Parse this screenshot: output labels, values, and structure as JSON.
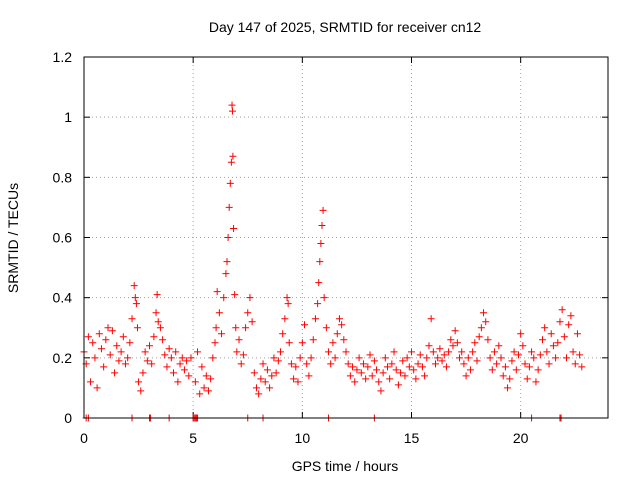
{
  "chart_data": {
    "type": "scatter",
    "title": "Day 147 of 2025, SRMTID for receiver cn12",
    "xlabel": "GPS time / hours",
    "ylabel": "SRMTID / TECUs",
    "xlim": [
      0,
      24
    ],
    "ylim": [
      0,
      1.2
    ],
    "x_ticks": [
      0,
      5,
      10,
      15,
      20
    ],
    "y_ticks": [
      0,
      0.2,
      0.4,
      0.6,
      0.8,
      1,
      1.2
    ],
    "x_tick_labels": [
      "0",
      "5",
      "10",
      "15",
      "20"
    ],
    "y_tick_labels": [
      "0",
      "0.2",
      "0.4",
      "0.6",
      "0.8",
      "1",
      "1.2"
    ],
    "grid": true,
    "marker": "+",
    "series_color": "#ff0000",
    "series": [
      {
        "name": "cn12",
        "points": [
          [
            0.0,
            0.22
          ],
          [
            0.1,
            0.18
          ],
          [
            0.2,
            0.27
          ],
          [
            0.3,
            0.12
          ],
          [
            0.4,
            0.25
          ],
          [
            0.5,
            0.2
          ],
          [
            0.6,
            0.1
          ],
          [
            0.7,
            0.28
          ],
          [
            0.8,
            0.23
          ],
          [
            0.9,
            0.17
          ],
          [
            1.0,
            0.26
          ],
          [
            1.1,
            0.3
          ],
          [
            1.2,
            0.21
          ],
          [
            1.3,
            0.29
          ],
          [
            1.4,
            0.15
          ],
          [
            1.5,
            0.24
          ],
          [
            1.6,
            0.19
          ],
          [
            1.7,
            0.22
          ],
          [
            1.8,
            0.27
          ],
          [
            1.9,
            0.18
          ],
          [
            2.0,
            0.2
          ],
          [
            2.1,
            0.25
          ],
          [
            2.2,
            0.33
          ],
          [
            2.3,
            0.44
          ],
          [
            2.35,
            0.4
          ],
          [
            2.4,
            0.38
          ],
          [
            2.45,
            0.3
          ],
          [
            2.5,
            0.12
          ],
          [
            2.6,
            0.09
          ],
          [
            2.7,
            0.15
          ],
          [
            2.8,
            0.22
          ],
          [
            2.9,
            0.19
          ],
          [
            3.0,
            0.24
          ],
          [
            3.1,
            0.18
          ],
          [
            3.2,
            0.27
          ],
          [
            3.3,
            0.35
          ],
          [
            3.35,
            0.41
          ],
          [
            3.4,
            0.32
          ],
          [
            3.5,
            0.3
          ],
          [
            3.6,
            0.26
          ],
          [
            3.7,
            0.21
          ],
          [
            3.8,
            0.17
          ],
          [
            3.9,
            0.23
          ],
          [
            4.0,
            0.2
          ],
          [
            4.1,
            0.15
          ],
          [
            4.2,
            0.22
          ],
          [
            4.3,
            0.12
          ],
          [
            4.4,
            0.18
          ],
          [
            4.5,
            0.2
          ],
          [
            4.6,
            0.16
          ],
          [
            4.7,
            0.19
          ],
          [
            4.8,
            0.14
          ],
          [
            4.9,
            0.2
          ],
          [
            5.0,
            0.0
          ],
          [
            5.1,
            0.12
          ],
          [
            5.2,
            0.22
          ],
          [
            5.3,
            0.08
          ],
          [
            5.4,
            0.17
          ],
          [
            5.5,
            0.1
          ],
          [
            5.6,
            0.14
          ],
          [
            5.7,
            0.09
          ],
          [
            5.8,
            0.13
          ],
          [
            5.9,
            0.2
          ],
          [
            6.0,
            0.25
          ],
          [
            6.05,
            0.3
          ],
          [
            6.1,
            0.42
          ],
          [
            6.2,
            0.35
          ],
          [
            6.3,
            0.28
          ],
          [
            6.4,
            0.4
          ],
          [
            6.5,
            0.48
          ],
          [
            6.55,
            0.52
          ],
          [
            6.6,
            0.6
          ],
          [
            6.65,
            0.7
          ],
          [
            6.7,
            0.78
          ],
          [
            6.75,
            0.85
          ],
          [
            6.78,
            1.04
          ],
          [
            6.8,
            1.02
          ],
          [
            6.82,
            0.87
          ],
          [
            6.85,
            0.63
          ],
          [
            6.9,
            0.41
          ],
          [
            6.95,
            0.3
          ],
          [
            7.0,
            0.22
          ],
          [
            7.1,
            0.26
          ],
          [
            7.2,
            0.18
          ],
          [
            7.3,
            0.21
          ],
          [
            7.4,
            0.3
          ],
          [
            7.5,
            0.35
          ],
          [
            7.6,
            0.4
          ],
          [
            7.7,
            0.32
          ],
          [
            7.8,
            0.15
          ],
          [
            7.9,
            0.1
          ],
          [
            8.0,
            0.08
          ],
          [
            8.1,
            0.13
          ],
          [
            8.2,
            0.18
          ],
          [
            8.3,
            0.12
          ],
          [
            8.4,
            0.16
          ],
          [
            8.5,
            0.1
          ],
          [
            8.6,
            0.14
          ],
          [
            8.7,
            0.2
          ],
          [
            8.8,
            0.15
          ],
          [
            8.9,
            0.19
          ],
          [
            9.0,
            0.22
          ],
          [
            9.1,
            0.28
          ],
          [
            9.2,
            0.33
          ],
          [
            9.3,
            0.4
          ],
          [
            9.35,
            0.38
          ],
          [
            9.4,
            0.25
          ],
          [
            9.5,
            0.18
          ],
          [
            9.6,
            0.13
          ],
          [
            9.7,
            0.17
          ],
          [
            9.8,
            0.12
          ],
          [
            9.9,
            0.2
          ],
          [
            10.0,
            0.25
          ],
          [
            10.1,
            0.31
          ],
          [
            10.2,
            0.18
          ],
          [
            10.3,
            0.14
          ],
          [
            10.4,
            0.2
          ],
          [
            10.5,
            0.26
          ],
          [
            10.6,
            0.33
          ],
          [
            10.7,
            0.38
          ],
          [
            10.75,
            0.45
          ],
          [
            10.8,
            0.52
          ],
          [
            10.85,
            0.58
          ],
          [
            10.9,
            0.64
          ],
          [
            10.95,
            0.69
          ],
          [
            11.0,
            0.4
          ],
          [
            11.1,
            0.3
          ],
          [
            11.2,
            0.22
          ],
          [
            11.3,
            0.18
          ],
          [
            11.4,
            0.25
          ],
          [
            11.5,
            0.2
          ],
          [
            11.6,
            0.28
          ],
          [
            11.7,
            0.33
          ],
          [
            11.8,
            0.31
          ],
          [
            11.9,
            0.26
          ],
          [
            12.0,
            0.22
          ],
          [
            12.1,
            0.18
          ],
          [
            12.2,
            0.14
          ],
          [
            12.3,
            0.17
          ],
          [
            12.4,
            0.12
          ],
          [
            12.5,
            0.16
          ],
          [
            12.6,
            0.2
          ],
          [
            12.7,
            0.15
          ],
          [
            12.8,
            0.18
          ],
          [
            12.9,
            0.13
          ],
          [
            13.0,
            0.17
          ],
          [
            13.1,
            0.21
          ],
          [
            13.2,
            0.14
          ],
          [
            13.3,
            0.19
          ],
          [
            13.4,
            0.16
          ],
          [
            13.5,
            0.12
          ],
          [
            13.6,
            0.09
          ],
          [
            13.7,
            0.15
          ],
          [
            13.8,
            0.2
          ],
          [
            13.9,
            0.17
          ],
          [
            14.0,
            0.13
          ],
          [
            14.1,
            0.18
          ],
          [
            14.2,
            0.22
          ],
          [
            14.3,
            0.16
          ],
          [
            14.4,
            0.11
          ],
          [
            14.5,
            0.15
          ],
          [
            14.6,
            0.19
          ],
          [
            14.7,
            0.14
          ],
          [
            14.8,
            0.2
          ],
          [
            14.9,
            0.17
          ],
          [
            15.0,
            0.22
          ],
          [
            15.1,
            0.16
          ],
          [
            15.2,
            0.13
          ],
          [
            15.3,
            0.18
          ],
          [
            15.4,
            0.21
          ],
          [
            15.5,
            0.17
          ],
          [
            15.6,
            0.14
          ],
          [
            15.7,
            0.2
          ],
          [
            15.8,
            0.24
          ],
          [
            15.9,
            0.33
          ],
          [
            16.0,
            0.22
          ],
          [
            16.1,
            0.18
          ],
          [
            16.2,
            0.2
          ],
          [
            16.3,
            0.23
          ],
          [
            16.4,
            0.19
          ],
          [
            16.5,
            0.21
          ],
          [
            16.6,
            0.17
          ],
          [
            16.7,
            0.22
          ],
          [
            16.8,
            0.26
          ],
          [
            16.9,
            0.24
          ],
          [
            17.0,
            0.29
          ],
          [
            17.1,
            0.25
          ],
          [
            17.2,
            0.2
          ],
          [
            17.3,
            0.22
          ],
          [
            17.4,
            0.18
          ],
          [
            17.5,
            0.14
          ],
          [
            17.6,
            0.2
          ],
          [
            17.7,
            0.16
          ],
          [
            17.8,
            0.22
          ],
          [
            17.9,
            0.25
          ],
          [
            18.0,
            0.19
          ],
          [
            18.1,
            0.27
          ],
          [
            18.2,
            0.3
          ],
          [
            18.3,
            0.35
          ],
          [
            18.4,
            0.32
          ],
          [
            18.5,
            0.26
          ],
          [
            18.6,
            0.2
          ],
          [
            18.7,
            0.16
          ],
          [
            18.8,
            0.22
          ],
          [
            18.9,
            0.18
          ],
          [
            19.0,
            0.24
          ],
          [
            19.1,
            0.2
          ],
          [
            19.2,
            0.14
          ],
          [
            19.3,
            0.17
          ],
          [
            19.4,
            0.1
          ],
          [
            19.5,
            0.13
          ],
          [
            19.6,
            0.19
          ],
          [
            19.7,
            0.22
          ],
          [
            19.8,
            0.16
          ],
          [
            19.9,
            0.21
          ],
          [
            20.0,
            0.28
          ],
          [
            20.1,
            0.24
          ],
          [
            20.2,
            0.18
          ],
          [
            20.3,
            0.13
          ],
          [
            20.4,
            0.17
          ],
          [
            20.5,
            0.22
          ],
          [
            20.6,
            0.2
          ],
          [
            20.7,
            0.12
          ],
          [
            20.8,
            0.16
          ],
          [
            20.9,
            0.21
          ],
          [
            21.0,
            0.26
          ],
          [
            21.1,
            0.3
          ],
          [
            21.2,
            0.22
          ],
          [
            21.3,
            0.18
          ],
          [
            21.4,
            0.28
          ],
          [
            21.5,
            0.24
          ],
          [
            21.6,
            0.2
          ],
          [
            21.7,
            0.25
          ],
          [
            21.8,
            0.32
          ],
          [
            21.9,
            0.36
          ],
          [
            22.0,
            0.27
          ],
          [
            22.1,
            0.2
          ],
          [
            22.2,
            0.31
          ],
          [
            22.3,
            0.34
          ],
          [
            22.4,
            0.22
          ],
          [
            22.5,
            0.18
          ],
          [
            22.6,
            0.28
          ],
          [
            22.7,
            0.21
          ],
          [
            22.8,
            0.17
          ]
        ],
        "zero_points": [
          0.1,
          0.2,
          2.2,
          3.0,
          3.05,
          3.9,
          5.0,
          5.05,
          5.1,
          5.15,
          5.2,
          7.5,
          8.2,
          11.2,
          13.3,
          20.5,
          21.8,
          21.85
        ]
      }
    ]
  }
}
